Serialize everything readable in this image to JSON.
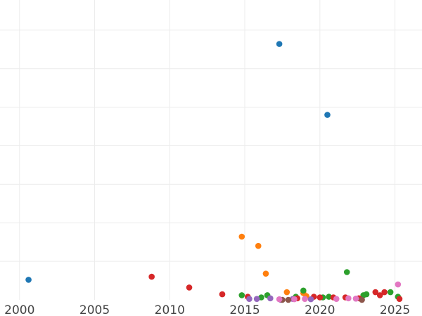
{
  "chart_data": {
    "type": "scatter",
    "title": "",
    "xlabel": "",
    "ylabel": "",
    "xlim": [
      1998.7,
      2026.8
    ],
    "ylim": [
      0,
      1
    ],
    "x_ticks": [
      2000,
      2005,
      2010,
      2015,
      2020,
      2025
    ],
    "grid": true,
    "y_tick_labels_shown": false,
    "colors": {
      "blue": "#1f77b4",
      "orange": "#ff7f0e",
      "green": "#2ca02c",
      "red": "#d62728",
      "purple": "#9467bd",
      "brown": "#8c564b",
      "pink": "#e377c2"
    },
    "series": [
      {
        "color": "blue",
        "points": [
          [
            2000.6,
            0.065
          ],
          [
            2017.3,
            0.83
          ],
          [
            2020.5,
            0.6
          ]
        ]
      },
      {
        "color": "orange",
        "points": [
          [
            2014.8,
            0.205
          ],
          [
            2015.9,
            0.175
          ],
          [
            2016.4,
            0.085
          ],
          [
            2017.8,
            0.025
          ],
          [
            2018.9,
            0.022
          ],
          [
            2019.1,
            0.012
          ]
        ]
      },
      {
        "color": "green",
        "points": [
          [
            2014.8,
            0.015
          ],
          [
            2016.1,
            0.008
          ],
          [
            2016.5,
            0.015
          ],
          [
            2018.4,
            0.01
          ],
          [
            2018.9,
            0.03
          ],
          [
            2020.2,
            0.008
          ],
          [
            2020.6,
            0.01
          ],
          [
            2021.8,
            0.09
          ],
          [
            2022.9,
            0.015
          ],
          [
            2023.1,
            0.018
          ],
          [
            2024.7,
            0.025
          ],
          [
            2025.2,
            0.01
          ]
        ]
      },
      {
        "color": "red",
        "points": [
          [
            2008.8,
            0.075
          ],
          [
            2011.3,
            0.04
          ],
          [
            2013.5,
            0.018
          ],
          [
            2015.2,
            0.01
          ],
          [
            2018.5,
            0.005
          ],
          [
            2019.6,
            0.01
          ],
          [
            2020.0,
            0.008
          ],
          [
            2020.9,
            0.008
          ],
          [
            2021.7,
            0.008
          ],
          [
            2022.6,
            0.005
          ],
          [
            2023.7,
            0.025
          ],
          [
            2024.0,
            0.015
          ],
          [
            2024.3,
            0.025
          ],
          [
            2025.3,
            0.003
          ]
        ]
      },
      {
        "color": "purple",
        "points": [
          [
            2015.3,
            0.003
          ],
          [
            2015.8,
            0.003
          ],
          [
            2016.7,
            0.005
          ],
          [
            2017.4,
            0.0
          ],
          [
            2018.2,
            0.003
          ],
          [
            2019.4,
            0.002
          ],
          [
            2022.4,
            0.004
          ]
        ]
      },
      {
        "color": "brown",
        "points": [
          [
            2017.5,
            0.0
          ],
          [
            2017.9,
            0.0
          ],
          [
            2022.8,
            0.0
          ]
        ]
      },
      {
        "color": "pink",
        "points": [
          [
            2017.3,
            0.002
          ],
          [
            2018.3,
            0.002
          ],
          [
            2019.0,
            0.003
          ],
          [
            2021.1,
            0.003
          ],
          [
            2021.9,
            0.005
          ],
          [
            2022.4,
            0.004
          ],
          [
            2025.2,
            0.05
          ]
        ]
      }
    ]
  }
}
